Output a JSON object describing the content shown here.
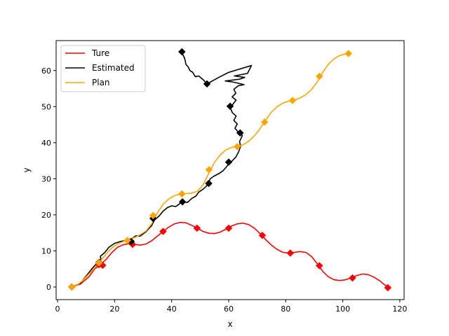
{
  "chart_data": {
    "type": "line",
    "title": "",
    "xlabel": "x",
    "ylabel": "y",
    "xlim": [
      -0.5,
      121.5
    ],
    "ylim": [
      -3.5,
      68.3
    ],
    "xticks": [
      0,
      20,
      40,
      60,
      80,
      100,
      120
    ],
    "yticks": [
      0,
      10,
      20,
      30,
      40,
      50,
      60
    ],
    "grid": false,
    "legend_position": "top-left",
    "series": [
      {
        "name": "Ture",
        "color": "#ff0000",
        "marker": "diamond",
        "line": [
          [
            5,
            0
          ],
          [
            8,
            0.8
          ],
          [
            11,
            2.8
          ],
          [
            13,
            5
          ],
          [
            15,
            6.2
          ],
          [
            17,
            7.6
          ],
          [
            19,
            9.5
          ],
          [
            21,
            11
          ],
          [
            23,
            11.7
          ],
          [
            25,
            12
          ],
          [
            27,
            11.8
          ],
          [
            29,
            11.6
          ],
          [
            31,
            11.9
          ],
          [
            33,
            12.8
          ],
          [
            35,
            14.1
          ],
          [
            37,
            15.4
          ],
          [
            39,
            16.6
          ],
          [
            41,
            17.5
          ],
          [
            43,
            17.9
          ],
          [
            45,
            17.8
          ],
          [
            47,
            17.1
          ],
          [
            49,
            16.3
          ],
          [
            51,
            15.4
          ],
          [
            53,
            14.9
          ],
          [
            55,
            14.8
          ],
          [
            57,
            15.2
          ],
          [
            59,
            16
          ],
          [
            61,
            16.9
          ],
          [
            63,
            17.5
          ],
          [
            65,
            17.7
          ],
          [
            67,
            17.3
          ],
          [
            69,
            16.3
          ],
          [
            71,
            14.8
          ],
          [
            73,
            13.1
          ],
          [
            75,
            11.6
          ],
          [
            77,
            10.4
          ],
          [
            79,
            9.6
          ],
          [
            81,
            9.4
          ],
          [
            83,
            9.6
          ],
          [
            85,
            9.8
          ],
          [
            87,
            9.6
          ],
          [
            89,
            8.5
          ],
          [
            91,
            6.5
          ],
          [
            93,
            4.3
          ],
          [
            95,
            2.8
          ],
          [
            97,
            2
          ],
          [
            99,
            1.8
          ],
          [
            101,
            2
          ],
          [
            103,
            2.6
          ],
          [
            105,
            3.2
          ],
          [
            107,
            3.6
          ],
          [
            109,
            3.4
          ],
          [
            111,
            2.7
          ],
          [
            113,
            1.7
          ],
          [
            114.5,
            0.7
          ],
          [
            115.8,
            0
          ]
        ],
        "marker_points": [
          [
            5,
            0
          ],
          [
            14.5,
            6.2
          ],
          [
            15.8,
            6
          ],
          [
            26.3,
            11.8
          ],
          [
            37,
            15.4
          ],
          [
            48.9,
            16.3
          ],
          [
            60,
            16.3
          ],
          [
            71.8,
            14.3
          ],
          [
            81.6,
            9.4
          ],
          [
            91.8,
            5.9
          ],
          [
            103.4,
            2.5
          ],
          [
            115.8,
            -0.2
          ]
        ]
      },
      {
        "name": "Estimated",
        "color": "#000000",
        "marker": "diamond",
        "line": [
          [
            5,
            0
          ],
          [
            8,
            1
          ],
          [
            10,
            3
          ],
          [
            12,
            5
          ],
          [
            14,
            6.8
          ],
          [
            15.2,
            7.8
          ],
          [
            15,
            8.5
          ],
          [
            16.5,
            9.5
          ],
          [
            18,
            11
          ],
          [
            20,
            12.1
          ],
          [
            22,
            12.6
          ],
          [
            24.5,
            13
          ],
          [
            26,
            13.4
          ],
          [
            27.5,
            14.2
          ],
          [
            29,
            14.1
          ],
          [
            31,
            15.3
          ],
          [
            33,
            17
          ],
          [
            34,
            18.6
          ],
          [
            35.5,
            19.6
          ],
          [
            37,
            21
          ],
          [
            38.5,
            22
          ],
          [
            40,
            22.5
          ],
          [
            41.5,
            22.3
          ],
          [
            43,
            23.2
          ],
          [
            44,
            23.8
          ],
          [
            45.5,
            23.4
          ],
          [
            47,
            24.5
          ],
          [
            48.5,
            25.2
          ],
          [
            49.5,
            26.3
          ],
          [
            51,
            27.1
          ],
          [
            52,
            27.8
          ],
          [
            53,
            28.8
          ],
          [
            53.5,
            30
          ],
          [
            55,
            30.8
          ],
          [
            56.5,
            31.4
          ],
          [
            58,
            32.2
          ],
          [
            59,
            33.1
          ],
          [
            60,
            34.1
          ],
          [
            61,
            34.8
          ],
          [
            62.5,
            36
          ],
          [
            63.5,
            37.5
          ],
          [
            64.2,
            39
          ],
          [
            63.8,
            40.3
          ],
          [
            64.8,
            42
          ],
          [
            63.2,
            43.1
          ],
          [
            62.2,
            44
          ],
          [
            63,
            45.2
          ],
          [
            61.8,
            46.2
          ],
          [
            62.6,
            47.4
          ],
          [
            61.3,
            48.3
          ],
          [
            60.6,
            49.6
          ],
          [
            61.5,
            50.7
          ],
          [
            62.6,
            51.8
          ],
          [
            61.2,
            52.7
          ],
          [
            62.5,
            53.7
          ],
          [
            61.8,
            54.8
          ],
          [
            63.4,
            55.8
          ],
          [
            65.4,
            56.1
          ],
          [
            61.6,
            56.8
          ],
          [
            58.8,
            57.1
          ],
          [
            63.8,
            57.6
          ],
          [
            65.6,
            58.1
          ],
          [
            62,
            58.5
          ],
          [
            66.6,
            59.2
          ],
          [
            68,
            61.4
          ],
          [
            60,
            59.5
          ],
          [
            57,
            58.3
          ],
          [
            54,
            57
          ],
          [
            52.5,
            56.3
          ],
          [
            51,
            57.5
          ],
          [
            49.5,
            58.5
          ],
          [
            48.3,
            58.3
          ],
          [
            47.4,
            59.5
          ],
          [
            46.4,
            60
          ],
          [
            45.8,
            61
          ],
          [
            45,
            61.7
          ],
          [
            44.8,
            62.6
          ],
          [
            44.5,
            63.5
          ],
          [
            44,
            64.3
          ],
          [
            43.6,
            65.2
          ]
        ],
        "marker_points": [
          [
            5,
            0
          ],
          [
            14.5,
            6.8
          ],
          [
            25.8,
            12.6
          ],
          [
            33.5,
            19
          ],
          [
            43.8,
            23.6
          ],
          [
            53,
            28.7
          ],
          [
            60,
            34.6
          ],
          [
            64,
            42.7
          ],
          [
            60.5,
            50.1
          ],
          [
            52.4,
            56.3
          ],
          [
            43.6,
            65.2
          ]
        ]
      },
      {
        "name": "Plan",
        "color": "#ffa500",
        "marker": "diamond",
        "line": [
          [
            5,
            0
          ],
          [
            7,
            0.6
          ],
          [
            9,
            1.9
          ],
          [
            11,
            3.6
          ],
          [
            13,
            5.3
          ],
          [
            15,
            7.2
          ],
          [
            17,
            9.1
          ],
          [
            19,
            10.8
          ],
          [
            21,
            11.9
          ],
          [
            23,
            12.6
          ],
          [
            25,
            13.1
          ],
          [
            27,
            13.7
          ],
          [
            29,
            14.5
          ],
          [
            31,
            15.5
          ],
          [
            33,
            17.5
          ],
          [
            35,
            20.5
          ],
          [
            37,
            22.9
          ],
          [
            39,
            24.4
          ],
          [
            41,
            25.3
          ],
          [
            43,
            25.8
          ],
          [
            45,
            25.9
          ],
          [
            47,
            26
          ],
          [
            49,
            26.5
          ],
          [
            51,
            28.3
          ],
          [
            53,
            31.5
          ],
          [
            55,
            34.5
          ],
          [
            57,
            36.6
          ],
          [
            59,
            38
          ],
          [
            61,
            38.7
          ],
          [
            63,
            39
          ],
          [
            65,
            39.4
          ],
          [
            67,
            40.4
          ],
          [
            69,
            41.9
          ],
          [
            71,
            43.9
          ],
          [
            73,
            46.3
          ],
          [
            75,
            48.5
          ],
          [
            77,
            50
          ],
          [
            79,
            51
          ],
          [
            81,
            51.5
          ],
          [
            83,
            51.8
          ],
          [
            85,
            52.4
          ],
          [
            87,
            53.3
          ],
          [
            89,
            54.7
          ],
          [
            91,
            56.8
          ],
          [
            93,
            59.5
          ],
          [
            95,
            61.8
          ],
          [
            97,
            63.3
          ],
          [
            99,
            64.2
          ],
          [
            101,
            64.6
          ],
          [
            102,
            64.7
          ]
        ],
        "marker_points": [
          [
            5,
            0
          ],
          [
            14.5,
            6.7
          ],
          [
            24.5,
            12.9
          ],
          [
            33.5,
            19.8
          ],
          [
            43.6,
            25.8
          ],
          [
            53.1,
            32.5
          ],
          [
            63,
            38.9
          ],
          [
            72.6,
            45.7
          ],
          [
            82.4,
            51.7
          ],
          [
            91.8,
            58.4
          ],
          [
            102,
            64.7
          ]
        ]
      }
    ]
  }
}
